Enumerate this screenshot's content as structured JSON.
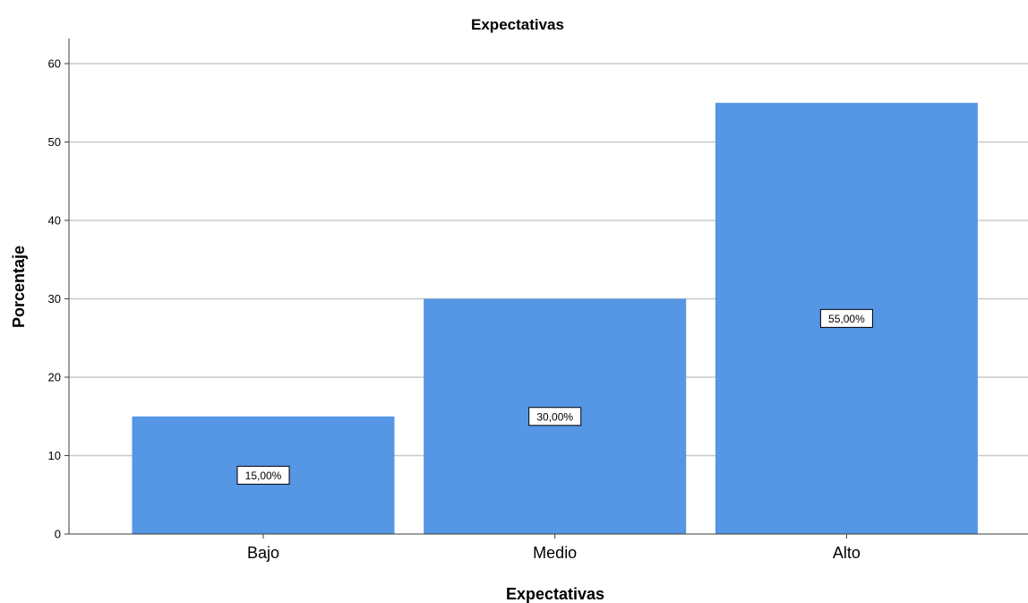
{
  "chart_data": {
    "type": "bar",
    "title": "Expectativas",
    "xlabel": "Expectativas",
    "ylabel": "Porcentaje",
    "categories": [
      "Bajo",
      "Medio",
      "Alto"
    ],
    "values": [
      15,
      30,
      55
    ],
    "data_labels": [
      "15,00%",
      "30,00%",
      "55,00%"
    ],
    "ylim": [
      0,
      63
    ],
    "yticks": [
      0,
      10,
      20,
      30,
      40,
      50,
      60
    ],
    "grid": true,
    "legend": "none",
    "bar_color": "#5596e5"
  }
}
